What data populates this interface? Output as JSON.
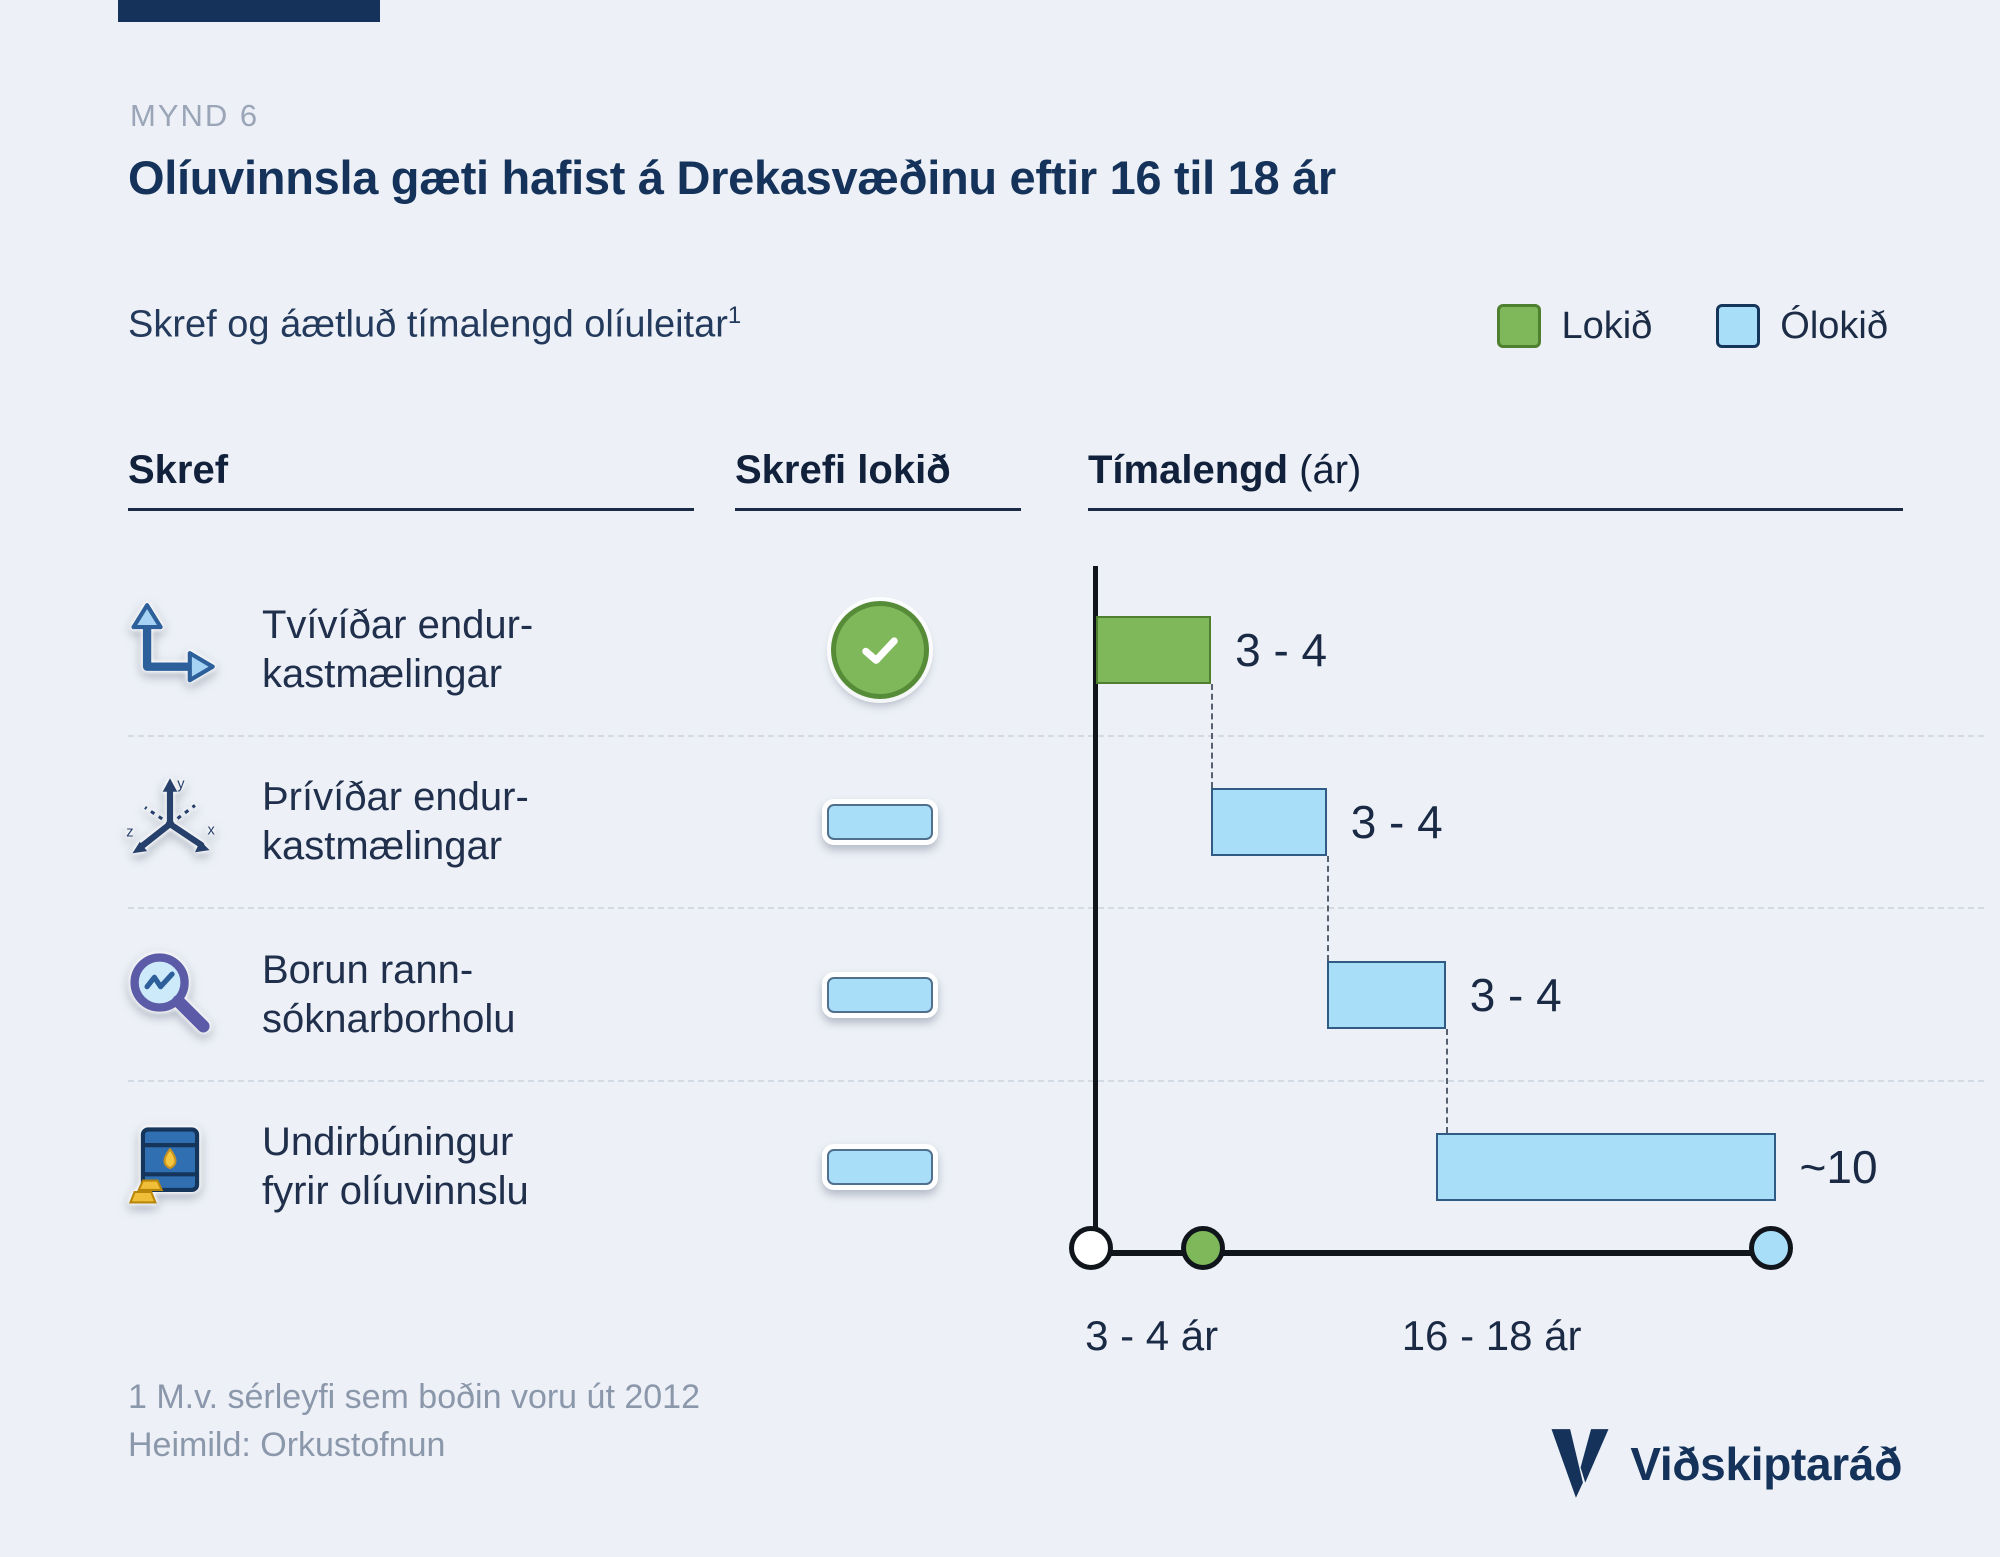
{
  "figure": {
    "label": "MYND 6",
    "title": "Olíuvinnsla gæti hafist á Drekasvæðinu eftir 16 til 18 ár",
    "subtitle": "Skref og áætluð tímalengd olíuleitar",
    "footnote_ref": "1"
  },
  "legend": {
    "items": [
      {
        "label": "Lokið",
        "color": "#7fb85a"
      },
      {
        "label": "Ólokið",
        "color": "#a9def9"
      }
    ]
  },
  "columns": {
    "step": "Skref",
    "completed": "Skrefi lokið",
    "duration": "Tímalengd",
    "duration_unit": "(ár)"
  },
  "rows": [
    {
      "icon": "2d-axes-icon",
      "label": [
        "Tvívíðar endur-",
        "kastmælingar"
      ],
      "completed": true
    },
    {
      "icon": "3d-axes-icon",
      "label": [
        "Þrívíðar endur-",
        "kastmælingar"
      ],
      "completed": false
    },
    {
      "icon": "magnifier-icon",
      "label": [
        "Borun rann-",
        "sóknarborholu"
      ],
      "completed": false
    },
    {
      "icon": "oil-barrel-icon",
      "label": [
        "Undirbúningur",
        "fyrir olíuvinnslu"
      ],
      "completed": false
    }
  ],
  "chart_data": {
    "type": "bar",
    "subtype": "gantt-timeline",
    "title": "Olíuvinnsla gæti hafist á Drekasvæðinu eftir 16 til 18 ár",
    "xlabel": "Tímalengd (ár)",
    "xlim_years": [
      0,
      20
    ],
    "grid": false,
    "legend_position": "top-right",
    "colors": {
      "done": "#7fb85a",
      "pending": "#a9def9",
      "axis": "#10141b"
    },
    "series": [
      {
        "name": "Tvívíðar endurkastmælingar",
        "status": "Lokið",
        "duration_label": "3 - 4",
        "start_years": 0,
        "end_years": 3.4
      },
      {
        "name": "Þrívíðar endurkastmælingar",
        "status": "Ólokið",
        "duration_label": "3 - 4",
        "start_years": 3.4,
        "end_years": 6.8
      },
      {
        "name": "Borun rannsóknarborholu",
        "status": "Ólokið",
        "duration_label": "3 - 4",
        "start_years": 6.8,
        "end_years": 10.3
      },
      {
        "name": "Undirbúningur fyrir olíuvinnslu",
        "status": "Ólokið",
        "duration_label": "~10",
        "start_years": 10,
        "end_years": 20
      }
    ],
    "timeline": {
      "markers": [
        {
          "years": 0,
          "color": "#ffffff"
        },
        {
          "years": 3.3,
          "color": "#7fb85a"
        },
        {
          "years": 20,
          "color": "#a9def9"
        }
      ],
      "segment_labels": [
        {
          "label": "3 - 4 ár",
          "mid_years": 1.65
        },
        {
          "label": "16 - 18 ár",
          "mid_years": 11.65
        }
      ]
    }
  },
  "footnotes": {
    "note": "1 M.v. sérleyfi sem boðin voru út 2012",
    "source": "Heimild: Orkustofnun"
  },
  "brand": {
    "name": "Viðskiptaráð"
  }
}
